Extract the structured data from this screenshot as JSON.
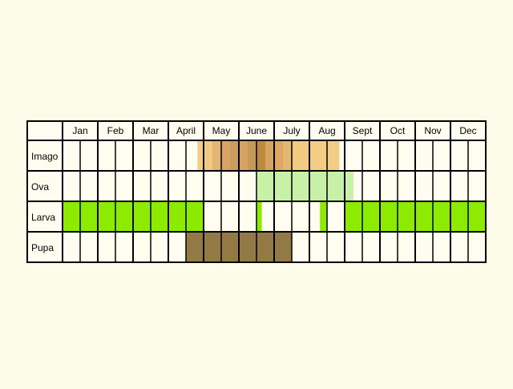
{
  "chart_data": {
    "type": "table",
    "months": [
      "Jan",
      "Feb",
      "Mar",
      "April",
      "May",
      "June",
      "July",
      "Aug",
      "Sept",
      "Oct",
      "Nov",
      "Dec"
    ],
    "subdivisions_per_month": 2,
    "rows": [
      {
        "label": "Imago",
        "segments": [
          {
            "start": 7.65,
            "end": 8.0,
            "color": "#F2CD85"
          },
          {
            "start": 8.0,
            "end": 8.5,
            "color": "#F1C983"
          },
          {
            "start": 8.5,
            "end": 9.0,
            "color": "#E2B572"
          },
          {
            "start": 9.0,
            "end": 9.5,
            "color": "#D7A466"
          },
          {
            "start": 9.5,
            "end": 10.0,
            "color": "#CB9C5F"
          },
          {
            "start": 10.0,
            "end": 10.5,
            "color": "#D6A362"
          },
          {
            "start": 10.5,
            "end": 11.0,
            "color": "#C59A58"
          },
          {
            "start": 11.0,
            "end": 11.5,
            "color": "#BC8A40"
          },
          {
            "start": 11.5,
            "end": 12.0,
            "color": "#D5A55E"
          },
          {
            "start": 12.0,
            "end": 12.5,
            "color": "#DDA960"
          },
          {
            "start": 12.5,
            "end": 13.0,
            "color": "#E6B771"
          },
          {
            "start": 13.0,
            "end": 14.0,
            "color": "#F2CA81"
          },
          {
            "start": 14.0,
            "end": 15.0,
            "color": "#F2CD85"
          },
          {
            "start": 15.0,
            "end": 15.7,
            "color": "#F2CD85"
          }
        ]
      },
      {
        "label": "Ova",
        "segments": [
          {
            "start": 11.0,
            "end": 16.5,
            "color": "#C6F1A7"
          }
        ]
      },
      {
        "label": "Larva",
        "segments": [
          {
            "start": 0.0,
            "end": 8.0,
            "color": "#8CEB00"
          },
          {
            "start": 11.0,
            "end": 11.3,
            "color": "#8CEB00"
          },
          {
            "start": 14.6,
            "end": 15.0,
            "color": "#8CEB00"
          },
          {
            "start": 16.0,
            "end": 24.0,
            "color": "#8CEB00"
          }
        ]
      },
      {
        "label": "Pupa",
        "segments": [
          {
            "start": 7.0,
            "end": 13.0,
            "color": "#937A45"
          }
        ]
      }
    ]
  },
  "colors": {
    "background": "#FDFBEA",
    "cell": "#FFFDF0",
    "border": "#000000"
  }
}
